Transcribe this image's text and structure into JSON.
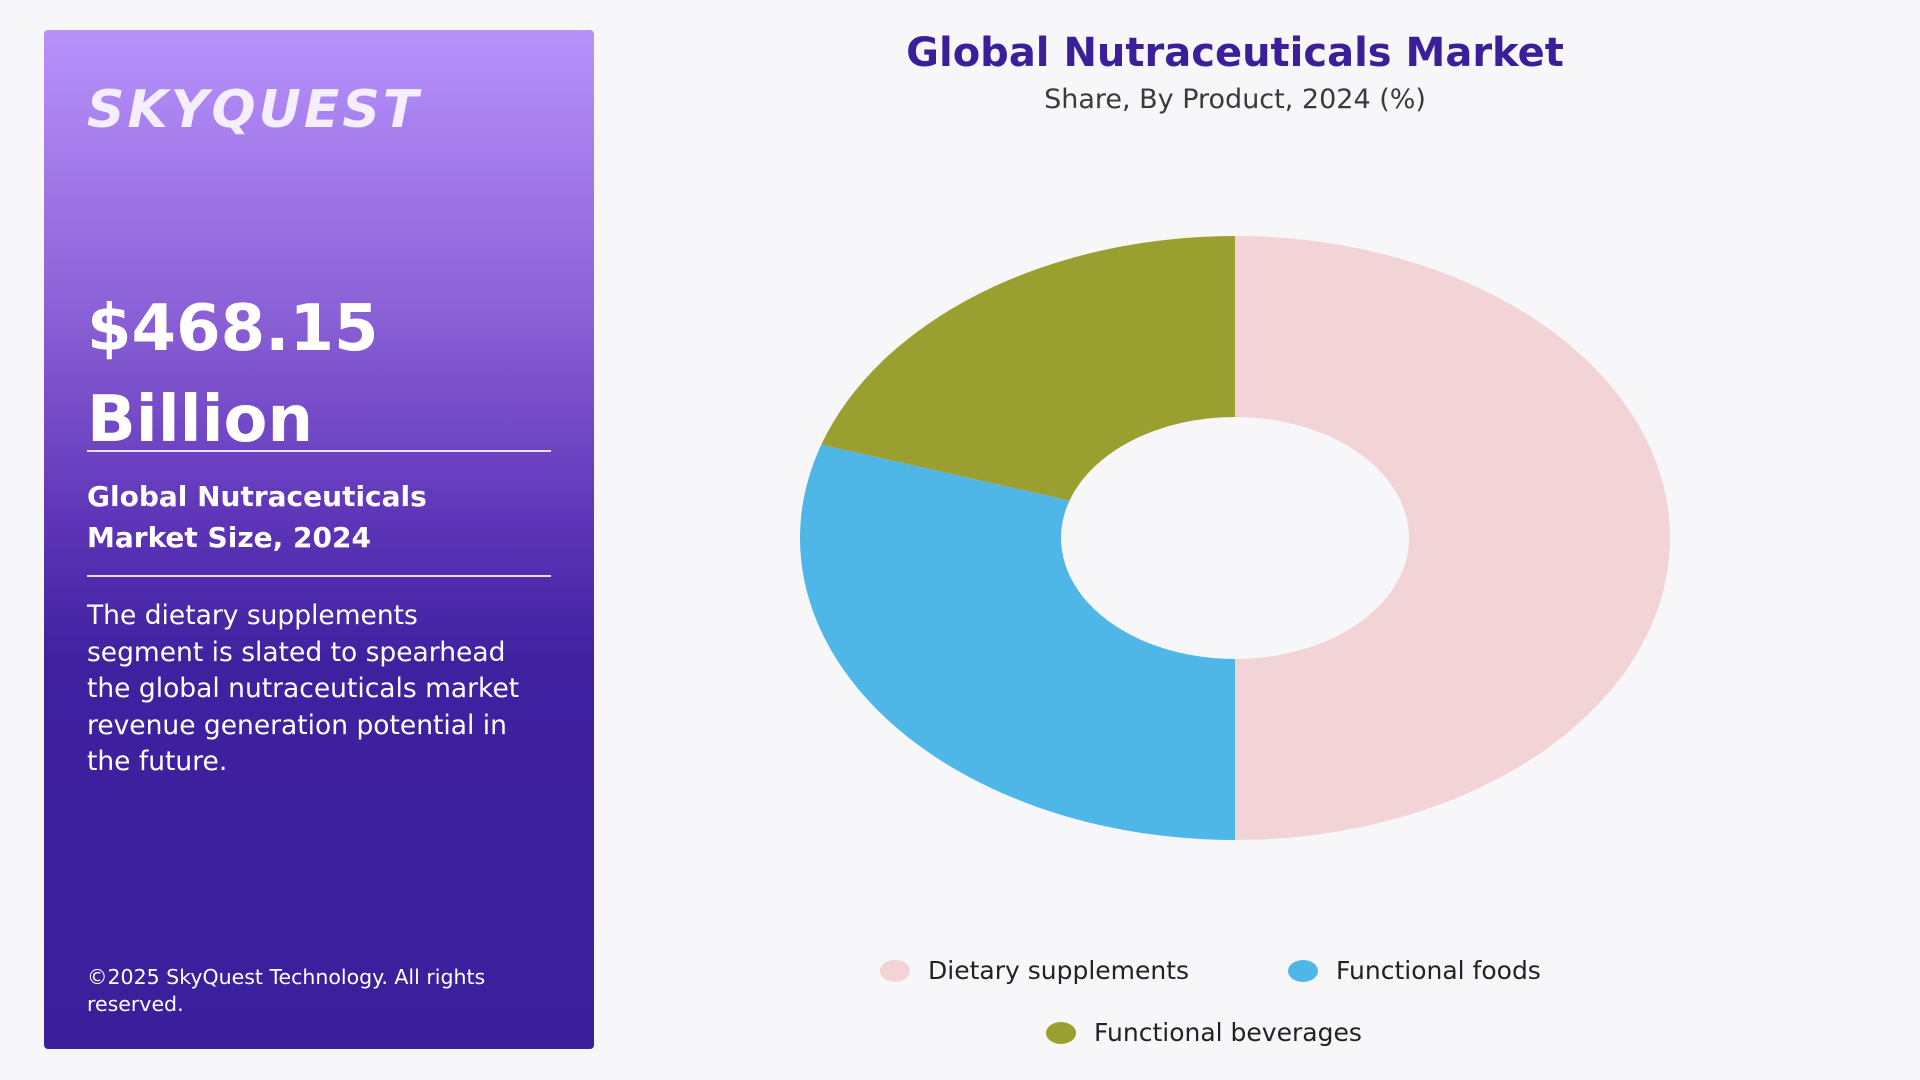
{
  "panel": {
    "brand": "SKYQUEST",
    "value_line1": "$468.15",
    "value_line2": "Billion",
    "subtitle_line1": "Global Nutraceuticals",
    "subtitle_line2": "Market Size, 2024",
    "description": "The dietary supplements segment is slated to spearhead the global nutraceuticals market revenue generation potential in the future.",
    "copyright": "©2025 SkyQuest Technology. All rights reserved."
  },
  "chart_data": {
    "type": "pie",
    "title": "Global Nutraceuticals Market",
    "subtitle": "Share, By Product, 2024 (%)",
    "categories": [
      "Dietary supplements",
      "Functional foods",
      "Functional beverages"
    ],
    "values": [
      50,
      30,
      20
    ],
    "colors": [
      "#f2d4d6",
      "#4fb6e8",
      "#99a02f"
    ],
    "donut": true,
    "legend_position": "bottom"
  }
}
